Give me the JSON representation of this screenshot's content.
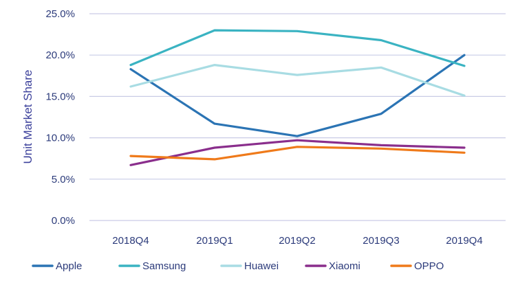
{
  "chart_data": {
    "type": "line",
    "title": "",
    "xlabel": "",
    "ylabel": "Unit Market Share",
    "ylim": [
      0,
      25
    ],
    "yticks": [
      "0.0%",
      "5.0%",
      "10.0%",
      "15.0%",
      "20.0%",
      "25.0%"
    ],
    "ytick_values": [
      0,
      5,
      10,
      15,
      20,
      25
    ],
    "categories": [
      "2018Q4",
      "2019Q1",
      "2019Q2",
      "2019Q3",
      "2019Q4"
    ],
    "grid": true,
    "legend_position": "bottom",
    "series": [
      {
        "name": "Apple",
        "color": "#2b74b4",
        "values": [
          18.3,
          11.7,
          10.2,
          12.9,
          20.0
        ]
      },
      {
        "name": "Samsung",
        "color": "#3ab3c2",
        "values": [
          18.8,
          23.0,
          22.9,
          21.8,
          18.7
        ]
      },
      {
        "name": "Huawei",
        "color": "#a8dce3",
        "values": [
          16.2,
          18.8,
          17.6,
          18.5,
          15.1
        ]
      },
      {
        "name": "Xiaomi",
        "color": "#8a2e8c",
        "values": [
          6.7,
          8.8,
          9.7,
          9.1,
          8.8
        ]
      },
      {
        "name": "OPPO",
        "color": "#ef7a1a",
        "values": [
          7.8,
          7.4,
          8.9,
          8.7,
          8.2
        ]
      }
    ]
  }
}
